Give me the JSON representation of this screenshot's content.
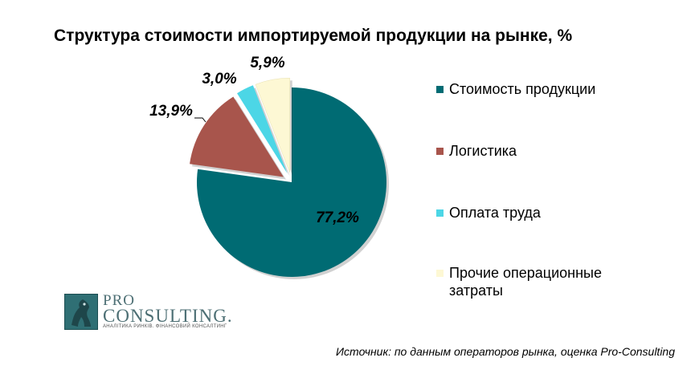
{
  "chart_data": {
    "type": "pie",
    "title": "Структура стоимости импортируемой продукции на рынке, %",
    "slices": [
      {
        "label": "Стоимость продукции",
        "value": 77.2,
        "display": "77,2%",
        "color": "#006b73",
        "exploded": false
      },
      {
        "label": "Логистика",
        "value": 13.9,
        "display": "13,9%",
        "color": "#a8554c",
        "exploded": true
      },
      {
        "label": "Оплата труда",
        "value": 3.0,
        "display": "3,0%",
        "color": "#4cd6e6",
        "exploded": true
      },
      {
        "label": "Прочие операционные затраты",
        "value": 5.9,
        "display": "5,9%",
        "color": "#fdf8d4",
        "exploded": true
      }
    ],
    "legend_position": "right"
  },
  "logo": {
    "pro": "PRO",
    "consulting": "CONSULTING.",
    "tagline": "АНАЛІТИКА РИНКІВ. ФІНАНСОВИЙ КОНСАЛТИНГ"
  },
  "source": "Источник: по данным операторов рынка, оценка Pro-Consulting"
}
